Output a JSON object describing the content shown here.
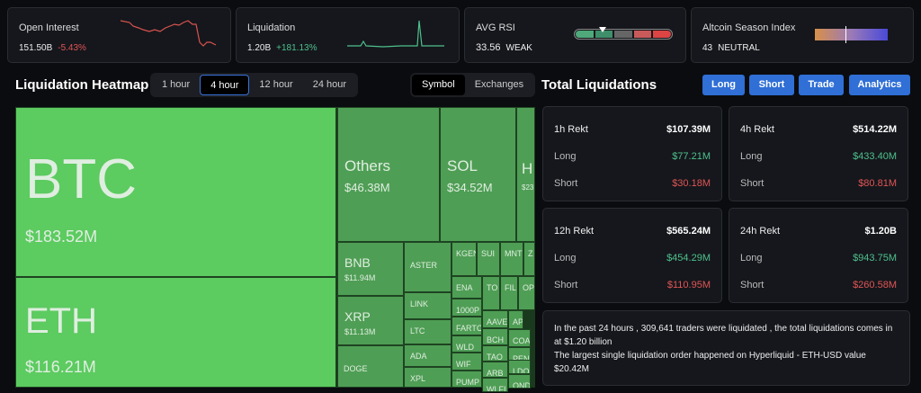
{
  "stats": [
    {
      "title": "Open Interest",
      "value": "151.50B",
      "change": "-5.43%",
      "change_color": "#e05555"
    },
    {
      "title": "Liquidation",
      "value": "1.20B",
      "change": "+181.13%",
      "change_color": "#4fc08d"
    },
    {
      "title": "AVG RSI",
      "value": "33.56",
      "change": "WEAK"
    },
    {
      "title": "Altcoin Season Index",
      "value": "43",
      "change": "NEUTRAL",
      "index_percent": 43
    }
  ],
  "heatmap": {
    "title": "Liquidation Heatmap",
    "time_tabs": [
      "1 hour",
      "4 hour",
      "12 hour",
      "24 hour"
    ],
    "active_time": "4 hour",
    "view_tabs": [
      "Symbol",
      "Exchanges"
    ],
    "active_view": "Symbol",
    "cells": [
      {
        "name": "BTC",
        "value": "$183.52M"
      },
      {
        "name": "ETH",
        "value": "$116.21M"
      },
      {
        "name": "Others",
        "value": "$46.38M"
      },
      {
        "name": "SOL",
        "value": "$34.52M"
      },
      {
        "name": "H",
        "value": "$23"
      },
      {
        "name": "BNB",
        "value": "$11.94M"
      },
      {
        "name": "XRP",
        "value": "$11.13M"
      },
      {
        "name": "DOGE"
      },
      {
        "name": "ASTER"
      },
      {
        "name": "LINK"
      },
      {
        "name": "LTC"
      },
      {
        "name": "ADA"
      },
      {
        "name": "XPL"
      },
      {
        "name": "KGEN"
      },
      {
        "name": "SUI"
      },
      {
        "name": "MNT"
      },
      {
        "name": "Z"
      },
      {
        "name": "ENA"
      },
      {
        "name": "TO"
      },
      {
        "name": "FIL"
      },
      {
        "name": "OP"
      },
      {
        "name": "1000P"
      },
      {
        "name": "FARTC"
      },
      {
        "name": "WLD"
      },
      {
        "name": "WIF"
      },
      {
        "name": "PUMP"
      },
      {
        "name": "AAVE"
      },
      {
        "name": "BCH"
      },
      {
        "name": "TAO"
      },
      {
        "name": "ARB"
      },
      {
        "name": "WLFI"
      },
      {
        "name": "AP"
      },
      {
        "name": "COA"
      },
      {
        "name": "PEN"
      },
      {
        "name": "LDO"
      },
      {
        "name": "OND"
      }
    ]
  },
  "total": {
    "title": "Total Liquidations",
    "buttons": [
      "Long",
      "Short",
      "Trade",
      "Analytics"
    ],
    "cards": [
      {
        "title": "1h Rekt",
        "total": "$107.39M",
        "long": "$77.21M",
        "short": "$30.18M"
      },
      {
        "title": "4h Rekt",
        "total": "$514.22M",
        "long": "$433.40M",
        "short": "$80.81M"
      },
      {
        "title": "12h Rekt",
        "total": "$565.24M",
        "long": "$454.29M",
        "short": "$110.95M"
      },
      {
        "title": "24h Rekt",
        "total": "$1.20B",
        "long": "$943.75M",
        "short": "$260.58M"
      }
    ],
    "long_label": "Long",
    "short_label": "Short",
    "summary_1": "In the past 24 hours , 309,641 traders were liquidated , the total liquidations comes in at $1.20 billion",
    "summary_2": "The largest single liquidation order happened on Hyperliquid - ETH-USD value $20.42M"
  },
  "colors": {
    "long": "#4fc08d",
    "short": "#e05555",
    "accent": "#2f6fd6",
    "heat_large": "#5ccb60",
    "heat": "#4f9e55"
  }
}
